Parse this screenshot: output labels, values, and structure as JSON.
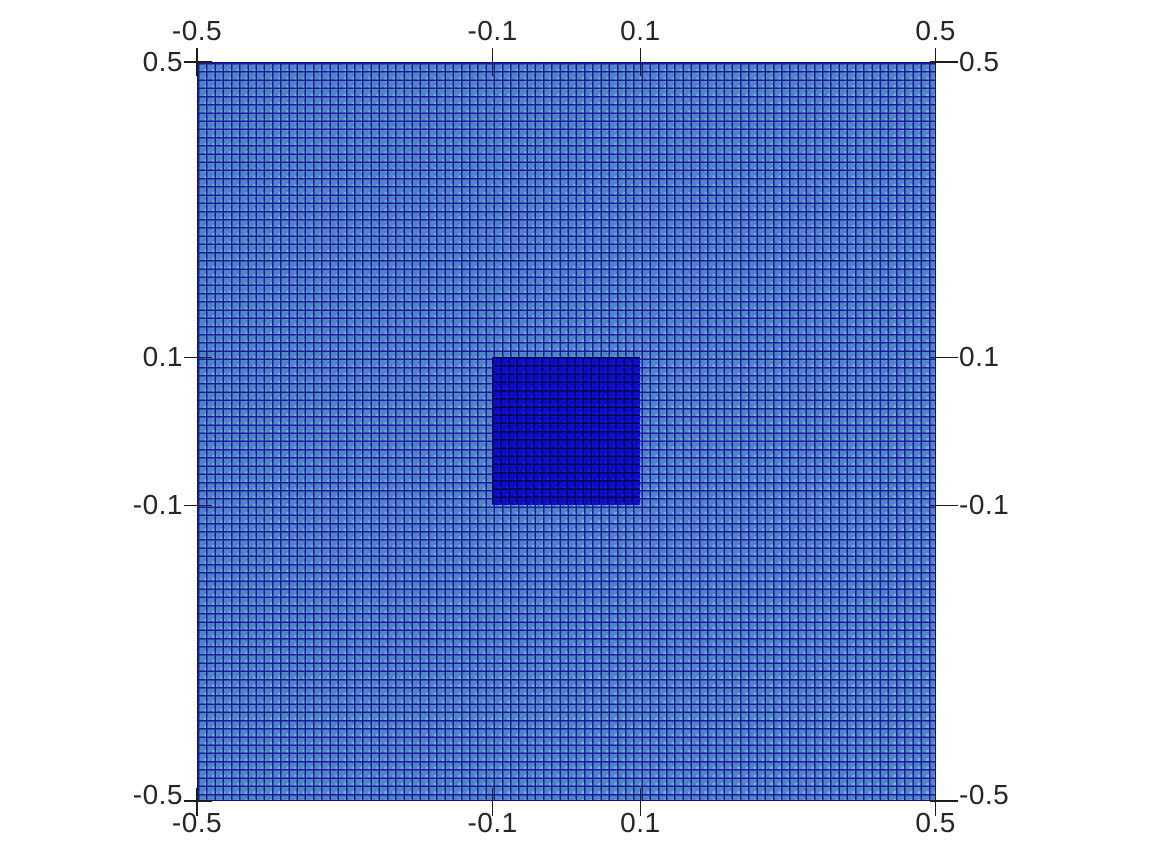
{
  "scene": {
    "background_color": "#ffffff",
    "view_type": "2D quadrilateral mesh render view"
  },
  "mesh": {
    "domain": {
      "xmin": -0.5,
      "xmax": 0.5,
      "ymin": -0.5,
      "ymax": 0.5
    },
    "cells_per_side_approx": 90,
    "outer_region": {
      "fill_color": "#4e86c4",
      "edge_color": "#15159e"
    },
    "inner_region": {
      "xmin": -0.1,
      "xmax": 0.1,
      "ymin": -0.1,
      "ymax": 0.1,
      "fill_color": "#0c0cce",
      "edge_color": "#02023c"
    }
  },
  "axes": {
    "tick_color": "#1c1c1c",
    "label_color": "#262626",
    "top": {
      "labels": [
        "-0.5",
        "-0.1",
        "0.1",
        "0.5"
      ]
    },
    "bottom": {
      "labels": [
        "-0.5",
        "-0.1",
        "0.1",
        "0.5"
      ]
    },
    "left": {
      "labels": [
        "0.5",
        "0.1",
        "-0.1",
        "-0.5"
      ]
    },
    "right": {
      "labels": [
        "0.5",
        "0.1",
        "-0.1",
        "-0.5"
      ]
    }
  },
  "chart_data": {
    "type": "heatmap",
    "title": "",
    "xlabel": "",
    "ylabel": "",
    "xlim": [
      -0.5,
      0.5
    ],
    "ylim": [
      -0.5,
      0.5
    ],
    "x_ticks": [
      -0.5,
      -0.1,
      0.1,
      0.5
    ],
    "y_ticks": [
      -0.5,
      -0.1,
      0.1,
      0.5
    ],
    "grid": "uniform quad mesh, approx 90x90 cells, edges shown",
    "legend": "none",
    "regions": [
      {
        "name": "outer-domain",
        "x": [
          -0.5,
          0.5
        ],
        "y": [
          -0.5,
          0.5
        ],
        "color": "#4e86c4"
      },
      {
        "name": "inner-square",
        "x": [
          -0.1,
          0.1
        ],
        "y": [
          -0.1,
          0.1
        ],
        "color": "#0c0cce"
      }
    ]
  }
}
